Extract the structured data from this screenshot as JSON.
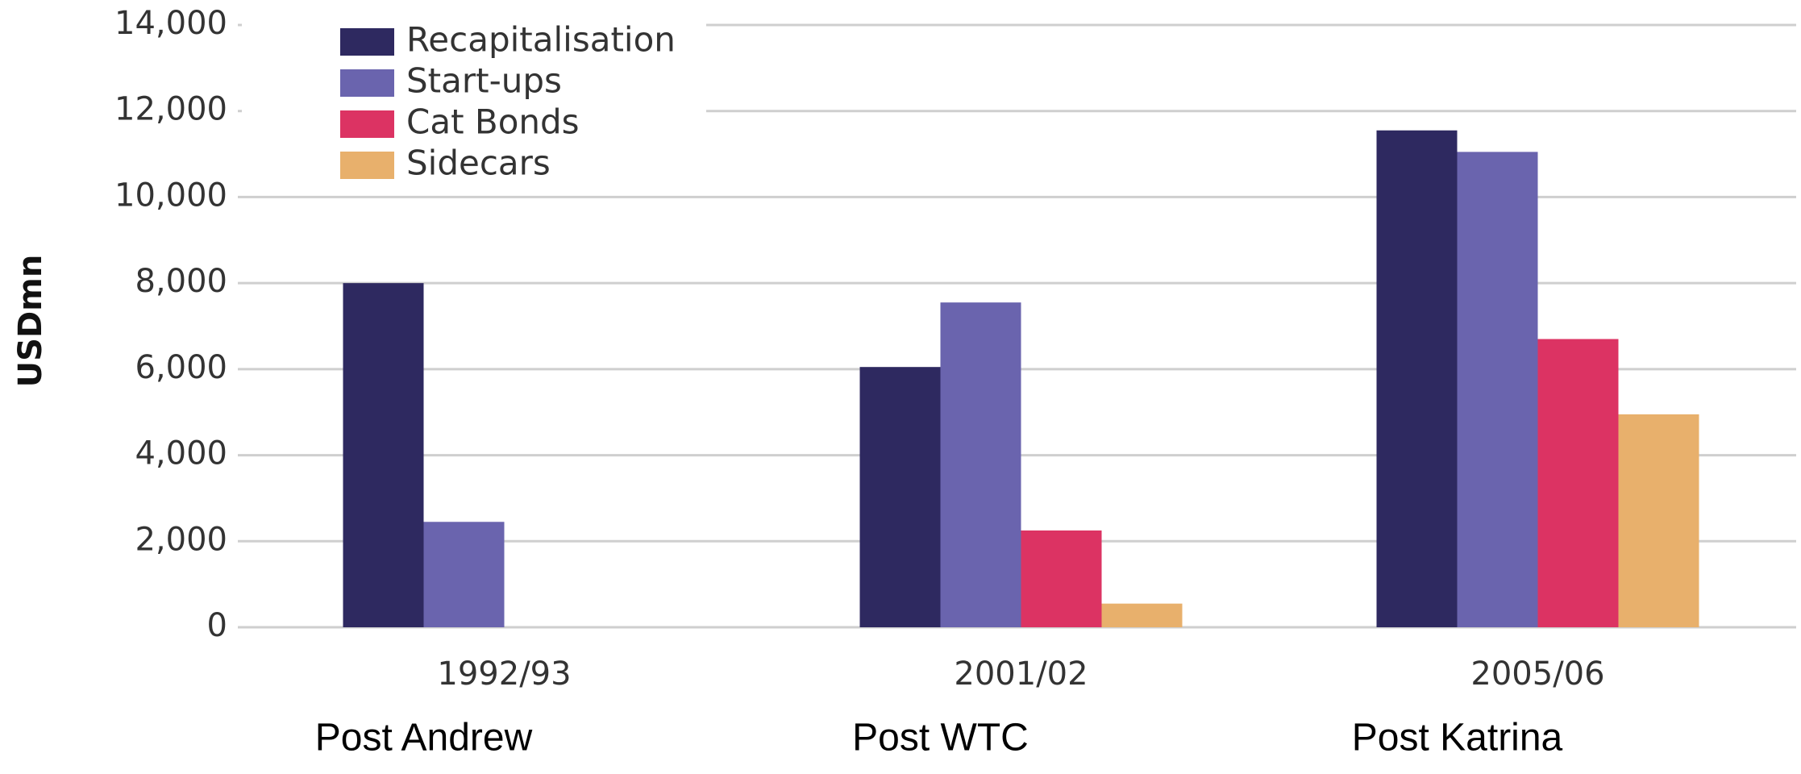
{
  "chart_data": {
    "type": "bar",
    "y_label": "USDmn",
    "categories": [
      "1992/93",
      "2001/02",
      "2005/06"
    ],
    "annotations": [
      "Post Andrew",
      "Post WTC",
      "Post Katrina"
    ],
    "series": [
      {
        "name": "Recapitalisation",
        "color": "#2e2960",
        "values": [
          8000,
          6050,
          11550
        ]
      },
      {
        "name": "Start-ups",
        "color": "#6a64ae",
        "values": [
          2450,
          7550,
          11050
        ]
      },
      {
        "name": "Cat Bonds",
        "color": "#dc3363",
        "values": [
          null,
          2250,
          6700
        ]
      },
      {
        "name": "Sidecars",
        "color": "#e8b06c",
        "values": [
          null,
          550,
          4950
        ]
      }
    ],
    "ylim": [
      0,
      14000
    ],
    "yticks": [
      0,
      {
        "value": 2000,
        "label": "2,000"
      },
      {
        "value": 4000,
        "label": "4,000"
      },
      {
        "value": 6000,
        "label": "6,000"
      },
      {
        "value": 8000,
        "label": "8,000"
      },
      {
        "value": 10000,
        "label": "10,000"
      },
      {
        "value": 12000,
        "label": "12,000"
      },
      {
        "value": 14000,
        "label": "14,000"
      }
    ],
    "grid": true,
    "legend": "upper left"
  }
}
